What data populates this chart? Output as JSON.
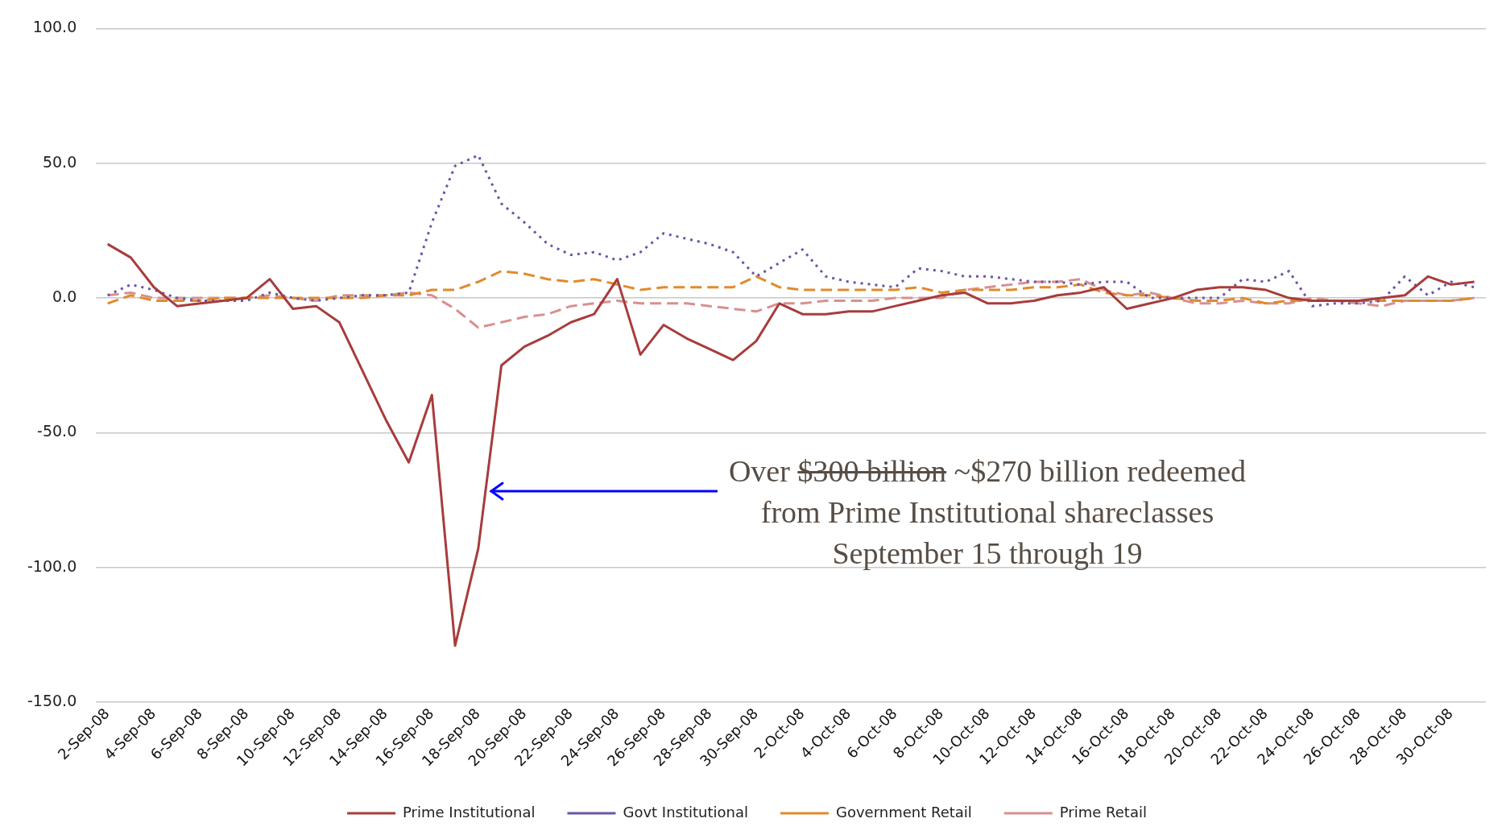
{
  "chart_data": {
    "type": "line",
    "categories": [
      "2-Sep-08",
      null,
      "4-Sep-08",
      null,
      "6-Sep-08",
      null,
      "8-Sep-08",
      null,
      "10-Sep-08",
      null,
      "12-Sep-08",
      null,
      "14-Sep-08",
      null,
      "16-Sep-08",
      null,
      "18-Sep-08",
      null,
      "20-Sep-08",
      null,
      "22-Sep-08",
      null,
      "24-Sep-08",
      null,
      "26-Sep-08",
      null,
      "28-Sep-08",
      null,
      "30-Sep-08",
      null,
      "2-Oct-08",
      null,
      "4-Oct-08",
      null,
      "6-Oct-08",
      null,
      "8-Oct-08",
      null,
      "10-Oct-08",
      null,
      "12-Oct-08",
      null,
      "14-Oct-08",
      null,
      "16-Oct-08",
      null,
      "18-Oct-08",
      null,
      "20-Oct-08",
      null,
      "22-Oct-08",
      null,
      "24-Oct-08",
      null,
      "26-Oct-08",
      null,
      "28-Oct-08",
      null,
      "30-Oct-08",
      null
    ],
    "series": [
      {
        "name": "Prime Institutional",
        "color": "#a83c3c",
        "line_style": "solid",
        "values": [
          20,
          15,
          4,
          -3,
          -2,
          -1,
          0,
          7,
          -4,
          -3,
          -9,
          -27,
          -45,
          -61,
          -36,
          -129,
          -93,
          -25,
          -18,
          -14,
          -9,
          -6,
          7,
          -21,
          -10,
          -15,
          -19,
          -23,
          -16,
          -2,
          -6,
          -6,
          -5,
          -5,
          -3,
          -1,
          1,
          2,
          -2,
          -2,
          -1,
          1,
          2,
          4,
          -4,
          -2,
          0,
          3,
          4,
          4,
          3,
          0,
          -1,
          -1,
          -1,
          0,
          1,
          8,
          5,
          6
        ]
      },
      {
        "name": "Govt Institutional",
        "color": "#6a55a8",
        "line_style": "dotted",
        "values": [
          1,
          5,
          3,
          0,
          -1,
          -1,
          -1,
          2,
          0,
          -1,
          0,
          1,
          1,
          2,
          28,
          49,
          53,
          35,
          28,
          20,
          16,
          17,
          14,
          17,
          24,
          22,
          20,
          17,
          8,
          13,
          18,
          8,
          6,
          5,
          4,
          11,
          10,
          8,
          8,
          7,
          6,
          6,
          5,
          6,
          6,
          0,
          0,
          0,
          0,
          7,
          6,
          10,
          -3,
          -2,
          -2,
          -1,
          8,
          1,
          6,
          4
        ]
      },
      {
        "name": "Government Retail",
        "color": "#e08a2c",
        "line_style": "dashed",
        "values": [
          -2,
          1,
          -1,
          -1,
          -1,
          0,
          0,
          0,
          0,
          0,
          0,
          0,
          1,
          1,
          3,
          3,
          6,
          10,
          9,
          7,
          6,
          7,
          5,
          3,
          4,
          4,
          4,
          4,
          8,
          4,
          3,
          3,
          3,
          3,
          3,
          4,
          2,
          3,
          3,
          3,
          4,
          4,
          5,
          2,
          1,
          1,
          0,
          -1,
          -1,
          0,
          -2,
          -1,
          -1,
          -1,
          -1,
          -1,
          -1,
          -1,
          -1,
          0
        ]
      },
      {
        "name": "Prime Retail",
        "color": "#d89090",
        "line_style": "dashed",
        "values": [
          1,
          2,
          0,
          0,
          0,
          0,
          0,
          1,
          0,
          -1,
          1,
          1,
          1,
          2,
          1,
          -4,
          -11,
          -9,
          -7,
          -6,
          -3,
          -2,
          -1,
          -2,
          -2,
          -2,
          -3,
          -4,
          -5,
          -2,
          -2,
          -1,
          -1,
          -1,
          0,
          0,
          0,
          3,
          4,
          5,
          6,
          6,
          7,
          3,
          1,
          2,
          0,
          -2,
          -2,
          -1,
          -2,
          -2,
          0,
          -1,
          -2,
          -3,
          -1,
          -1,
          -1,
          0
        ]
      }
    ],
    "ylim": [
      -150,
      100
    ],
    "yticks": [
      {
        "value": 100,
        "label": "100.0"
      },
      {
        "value": 50,
        "label": "50.0"
      },
      {
        "value": 0,
        "label": "0.0"
      },
      {
        "value": -50,
        "label": "-50.0"
      },
      {
        "value": -100,
        "label": "-100.0"
      },
      {
        "value": -150,
        "label": "-150.0"
      }
    ],
    "grid": "y",
    "legend": "bottom",
    "marker": "none",
    "annotations": [
      "Over",
      "$300 billion",
      "~$270 billion redeemed from Prime Institutional shareclasses September 15 through 19"
    ]
  }
}
